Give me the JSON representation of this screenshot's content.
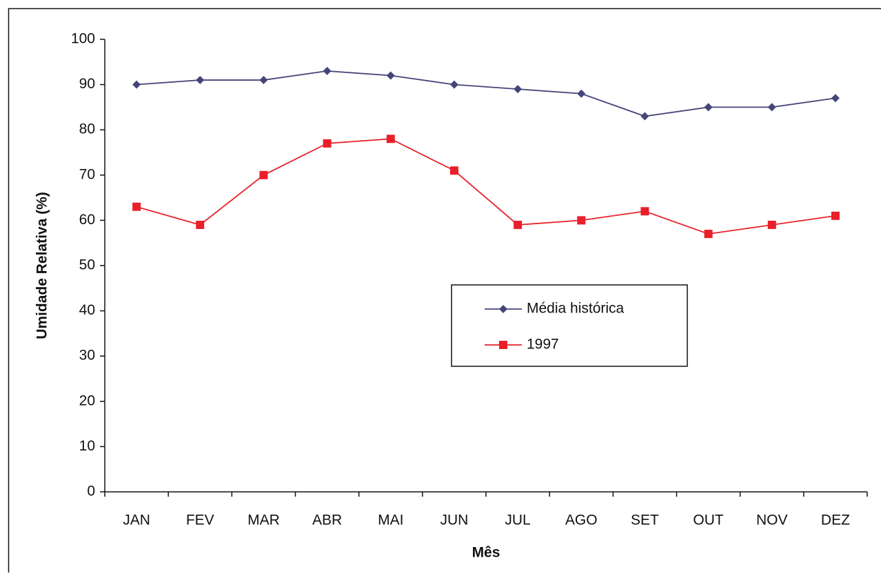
{
  "chart_data": {
    "type": "line",
    "x_label": "Mês",
    "y_label": "Umidade Relativa (%)",
    "categories": [
      "JAN",
      "FEV",
      "MAR",
      "ABR",
      "MAI",
      "JUN",
      "JUL",
      "AGO",
      "SET",
      "OUT",
      "NOV",
      "DEZ"
    ],
    "series": [
      {
        "name": "Média histórica",
        "color": "#45457a",
        "marker": "diamond",
        "values": [
          90,
          91,
          91,
          93,
          92,
          90,
          89,
          88,
          83,
          85,
          85,
          87
        ]
      },
      {
        "name": "1997",
        "color": "#e8202a",
        "marker": "square",
        "values": [
          63,
          59,
          70,
          77,
          78,
          71,
          59,
          60,
          62,
          57,
          59,
          61
        ]
      }
    ],
    "ylim": [
      0,
      100
    ],
    "yticks": [
      0,
      10,
      20,
      30,
      40,
      50,
      60,
      70,
      80,
      90,
      100
    ],
    "grid": false,
    "legend": "center"
  }
}
